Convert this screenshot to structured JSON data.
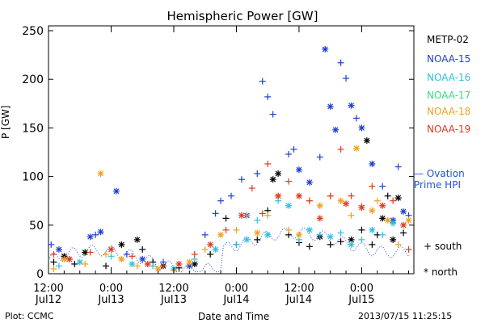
{
  "chart_data": {
    "type": "scatter",
    "title": "Hemispheric Power [GW]",
    "ylabel": "P [GW]",
    "xlabel": "Date and Time",
    "ylim": [
      0,
      255
    ],
    "xlim": [
      0,
      70
    ],
    "x_units": "hours since 2013-07-12 12:00",
    "yticks": [
      0,
      50,
      100,
      150,
      200,
      250
    ],
    "xticks": [
      {
        "x": 0,
        "top": "12:00",
        "bottom": "Jul12"
      },
      {
        "x": 12,
        "top": "0:00",
        "bottom": "Jul13"
      },
      {
        "x": 24,
        "top": "12:00",
        "bottom": "Jul13"
      },
      {
        "x": 36,
        "top": "0:00",
        "bottom": "Jul14"
      },
      {
        "x": 48,
        "top": "12:00",
        "bottom": "Jul14"
      },
      {
        "x": 60,
        "top": "0:00",
        "bottom": "Jul15"
      }
    ],
    "legend": [
      {
        "name": "METP-02",
        "color": "#000000"
      },
      {
        "name": "NOAA-15",
        "color": "#1f3fd0"
      },
      {
        "name": "NOAA-16",
        "color": "#2fc0e0"
      },
      {
        "name": "NOAA-17",
        "color": "#33dd88"
      },
      {
        "name": "NOAA-18",
        "color": "#f0a020"
      },
      {
        "name": "NOAA-19",
        "color": "#e03a20"
      }
    ],
    "ovation_label": [
      "— Ovation",
      "Prime HPI"
    ],
    "symbol_legend": [
      {
        "symbol": "+",
        "label": "south"
      },
      {
        "symbol": "*",
        "label": "north"
      }
    ],
    "series": [
      {
        "name": "METP-02",
        "color": "#000000",
        "points": [
          [
            1,
            12,
            "s"
          ],
          [
            3,
            18,
            "n"
          ],
          [
            5,
            10,
            "s"
          ],
          [
            7,
            22,
            "n"
          ],
          [
            11,
            8,
            "s"
          ],
          [
            14,
            30,
            "n"
          ],
          [
            17,
            35,
            "n"
          ],
          [
            18,
            25,
            "s"
          ],
          [
            20,
            12,
            "s"
          ],
          [
            22,
            8,
            "n"
          ],
          [
            25,
            6,
            "s"
          ],
          [
            28,
            10,
            "n"
          ],
          [
            31,
            20,
            "s"
          ],
          [
            34,
            57,
            "s"
          ],
          [
            36,
            30,
            "s"
          ],
          [
            40,
            35,
            "s"
          ],
          [
            42,
            65,
            "s"
          ],
          [
            43,
            97,
            "n"
          ],
          [
            44,
            103,
            "n"
          ],
          [
            46,
            40,
            "s"
          ],
          [
            48,
            32,
            "s"
          ],
          [
            50,
            28,
            "s"
          ],
          [
            52,
            38,
            "n"
          ],
          [
            54,
            30,
            "s"
          ],
          [
            56,
            33,
            "s"
          ],
          [
            58,
            35,
            "n"
          ],
          [
            60,
            45,
            "s"
          ],
          [
            61,
            137,
            "n"
          ],
          [
            62,
            30,
            "s"
          ],
          [
            63,
            40,
            "s"
          ],
          [
            64,
            57,
            "n"
          ],
          [
            65,
            80,
            "s"
          ],
          [
            66,
            35,
            "n"
          ],
          [
            67,
            78,
            "n"
          ],
          [
            68,
            42,
            "s"
          ]
        ]
      },
      {
        "name": "NOAA-15",
        "color": "#1f3fd0",
        "points": [
          [
            0.5,
            30,
            "s"
          ],
          [
            2,
            25,
            "n"
          ],
          [
            4,
            15,
            "s"
          ],
          [
            8,
            38,
            "n"
          ],
          [
            9,
            40,
            "s"
          ],
          [
            10,
            43,
            "n"
          ],
          [
            13,
            85,
            "n"
          ],
          [
            15,
            20,
            "s"
          ],
          [
            18,
            15,
            "n"
          ],
          [
            22,
            12,
            "s"
          ],
          [
            27,
            8,
            "n"
          ],
          [
            30,
            40,
            "s"
          ],
          [
            32,
            62,
            "s"
          ],
          [
            33,
            75,
            "s"
          ],
          [
            35,
            80,
            "s"
          ],
          [
            37,
            97,
            "s"
          ],
          [
            38,
            60,
            "n"
          ],
          [
            40,
            103,
            "s"
          ],
          [
            41,
            198,
            "s"
          ],
          [
            42,
            182,
            "s"
          ],
          [
            43,
            164,
            "s"
          ],
          [
            46,
            123,
            "s"
          ],
          [
            47,
            128,
            "s"
          ],
          [
            48,
            107,
            "n"
          ],
          [
            50,
            94,
            "n"
          ],
          [
            52,
            120,
            "s"
          ],
          [
            53,
            231,
            "n"
          ],
          [
            54,
            172,
            "n"
          ],
          [
            55,
            148,
            "n"
          ],
          [
            56,
            217,
            "s"
          ],
          [
            57,
            201,
            "s"
          ],
          [
            58,
            173,
            "n"
          ],
          [
            59,
            160,
            "s"
          ],
          [
            60,
            150,
            "n"
          ],
          [
            62,
            113,
            "n"
          ],
          [
            64,
            90,
            "s"
          ],
          [
            66,
            55,
            "n"
          ],
          [
            67,
            110,
            "s"
          ],
          [
            68,
            64,
            "n"
          ],
          [
            69,
            60,
            "s"
          ]
        ]
      },
      {
        "name": "NOAA-16",
        "color": "#2fc0e0",
        "points": [
          [
            2,
            8,
            "s"
          ],
          [
            6,
            12,
            "n"
          ],
          [
            12,
            18,
            "s"
          ],
          [
            16,
            10,
            "n"
          ],
          [
            20,
            8,
            "s"
          ],
          [
            24,
            5,
            "n"
          ],
          [
            28,
            15,
            "s"
          ],
          [
            32,
            25,
            "n"
          ],
          [
            36,
            30,
            "s"
          ],
          [
            38,
            35,
            "n"
          ],
          [
            40,
            55,
            "s"
          ],
          [
            42,
            40,
            "n"
          ],
          [
            44,
            75,
            "s"
          ],
          [
            46,
            70,
            "n"
          ],
          [
            48,
            35,
            "s"
          ],
          [
            50,
            45,
            "n"
          ],
          [
            52,
            40,
            "s"
          ],
          [
            54,
            38,
            "n"
          ],
          [
            56,
            42,
            "s"
          ],
          [
            58,
            30,
            "n"
          ],
          [
            60,
            35,
            "s"
          ],
          [
            62,
            45,
            "n"
          ],
          [
            64,
            40,
            "s"
          ],
          [
            66,
            52,
            "n"
          ]
        ]
      },
      {
        "name": "NOAA-18",
        "color": "#f0a020",
        "points": [
          [
            1,
            5,
            "s"
          ],
          [
            3,
            15,
            "n"
          ],
          [
            7,
            10,
            "s"
          ],
          [
            10,
            103,
            "n"
          ],
          [
            11,
            20,
            "s"
          ],
          [
            14,
            15,
            "n"
          ],
          [
            17,
            8,
            "s"
          ],
          [
            21,
            5,
            "n"
          ],
          [
            24,
            3,
            "s"
          ],
          [
            27,
            12,
            "n"
          ],
          [
            30,
            25,
            "s"
          ],
          [
            33,
            40,
            "n"
          ],
          [
            36,
            45,
            "s"
          ],
          [
            38,
            60,
            "s"
          ],
          [
            40,
            42,
            "n"
          ],
          [
            42,
            60,
            "s"
          ],
          [
            44,
            80,
            "n"
          ],
          [
            46,
            45,
            "s"
          ],
          [
            48,
            40,
            "n"
          ],
          [
            50,
            75,
            "s"
          ],
          [
            52,
            70,
            "n"
          ],
          [
            54,
            80,
            "s"
          ],
          [
            56,
            75,
            "n"
          ],
          [
            58,
            60,
            "s"
          ],
          [
            59,
            129,
            "n"
          ],
          [
            60,
            70,
            "s"
          ],
          [
            62,
            65,
            "n"
          ],
          [
            63,
            75,
            "s"
          ],
          [
            65,
            55,
            "n"
          ],
          [
            67,
            30,
            "s"
          ],
          [
            69,
            55,
            "n"
          ]
        ]
      },
      {
        "name": "NOAA-19",
        "color": "#e03a20",
        "points": [
          [
            1,
            20,
            "s"
          ],
          [
            4,
            15,
            "n"
          ],
          [
            8,
            22,
            "s"
          ],
          [
            12,
            25,
            "n"
          ],
          [
            16,
            18,
            "s"
          ],
          [
            19,
            10,
            "n"
          ],
          [
            22,
            8,
            "s"
          ],
          [
            25,
            10,
            "n"
          ],
          [
            28,
            20,
            "s"
          ],
          [
            31,
            30,
            "n"
          ],
          [
            34,
            45,
            "s"
          ],
          [
            37,
            60,
            "n"
          ],
          [
            39,
            88,
            "s"
          ],
          [
            41,
            62,
            "s"
          ],
          [
            42,
            113,
            "s"
          ],
          [
            44,
            80,
            "n"
          ],
          [
            46,
            95,
            "s"
          ],
          [
            48,
            80,
            "n"
          ],
          [
            50,
            75,
            "s"
          ],
          [
            52,
            57,
            "n"
          ],
          [
            54,
            80,
            "s"
          ],
          [
            56,
            128,
            "s"
          ],
          [
            57,
            72,
            "n"
          ],
          [
            58,
            80,
            "s"
          ],
          [
            60,
            68,
            "n"
          ],
          [
            62,
            90,
            "s"
          ],
          [
            64,
            70,
            "n"
          ],
          [
            66,
            75,
            "s"
          ],
          [
            68,
            50,
            "n"
          ],
          [
            69,
            25,
            "s"
          ]
        ]
      }
    ]
  },
  "footer": {
    "left": "Plot: CCMC",
    "right": "2013/07/15 11:25:15"
  }
}
